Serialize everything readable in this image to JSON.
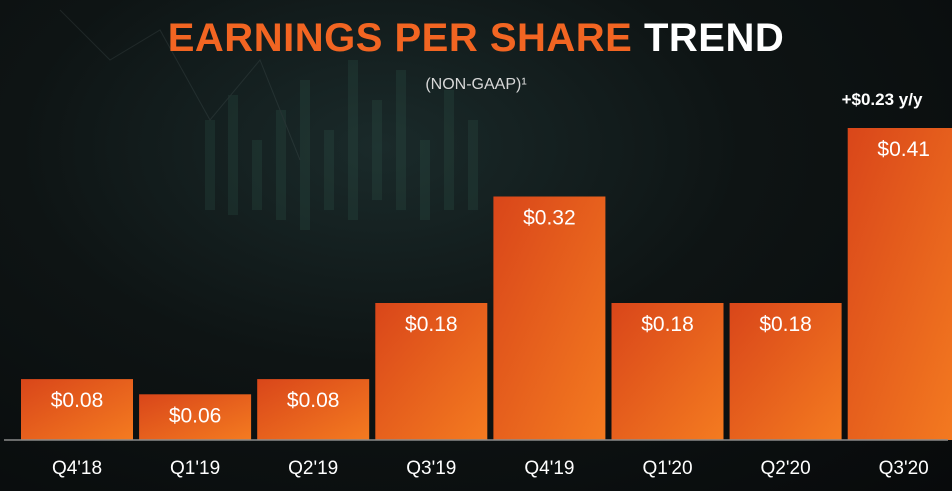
{
  "header": {
    "title_part1": "EARNINGS PER SHARE ",
    "title_part2": "TREND",
    "subtitle": "(NON-GAAP)¹"
  },
  "annotation": "+$0.23 y/y",
  "colors": {
    "accent": "#f26522",
    "bar_top": "#e4531a",
    "bar_bottom": "#f47b20",
    "text": "#ffffff"
  },
  "chart_data": {
    "type": "bar",
    "title": "EARNINGS PER SHARE TREND",
    "subtitle": "(NON-GAAP)¹",
    "categories": [
      "Q4'18",
      "Q1'19",
      "Q2'19",
      "Q3'19",
      "Q4'19",
      "Q1'20",
      "Q2'20",
      "Q3'20"
    ],
    "values": [
      0.08,
      0.06,
      0.08,
      0.18,
      0.32,
      0.18,
      0.18,
      0.41
    ],
    "value_labels": [
      "$0.08",
      "$0.06",
      "$0.08",
      "$0.18",
      "$0.32",
      "$0.18",
      "$0.18",
      "$0.41"
    ],
    "xlabel": "",
    "ylabel": "",
    "ylim": [
      0,
      0.41
    ],
    "grid": false,
    "legend": "none"
  }
}
